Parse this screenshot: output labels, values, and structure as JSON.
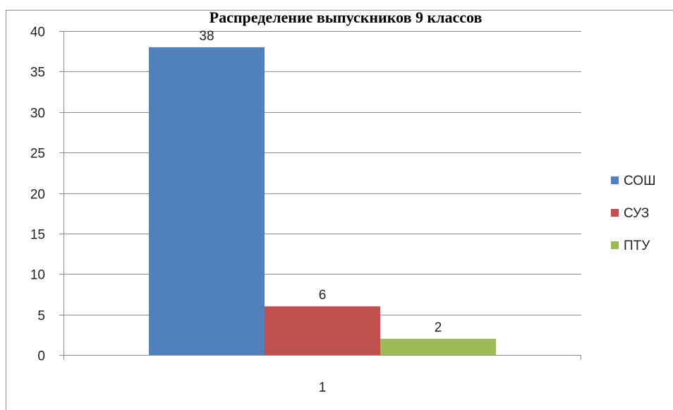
{
  "chart_data": {
    "type": "bar",
    "title": "Распределение выпускников 9 классов",
    "categories": [
      "1"
    ],
    "series": [
      {
        "name": "СОШ",
        "values": [
          38
        ],
        "color": "#4F81BD"
      },
      {
        "name": "СУЗ",
        "values": [
          6
        ],
        "color": "#C0504D"
      },
      {
        "name": "ПТУ",
        "values": [
          2
        ],
        "color": "#9BBB59"
      }
    ],
    "y_ticks": [
      "0",
      "5",
      "10",
      "15",
      "20",
      "25",
      "30",
      "35",
      "40"
    ],
    "ylim": [
      0,
      40
    ],
    "xlabel": "",
    "ylabel": "",
    "grid": true,
    "legend_position": "right"
  }
}
